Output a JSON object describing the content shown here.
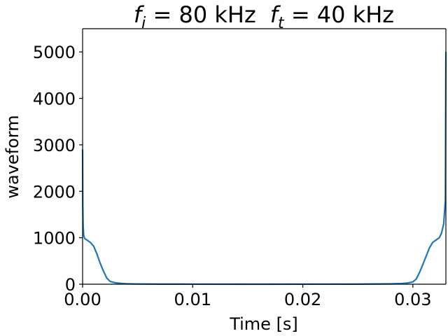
{
  "chart_data": {
    "type": "line",
    "title": {
      "f_i_symbol": "f",
      "f_i_sub": "i",
      "f_i_value": " = 80 kHz",
      "f_t_symbol": "f",
      "f_t_sub": "t",
      "f_t_value": " = 40 kHz"
    },
    "xlabel": "Time [s]",
    "ylabel": "waveform",
    "xlim": [
      0.0,
      0.033
    ],
    "ylim": [
      0,
      5500
    ],
    "xticks": [
      0.0,
      0.01,
      0.02,
      0.03
    ],
    "xtick_labels": [
      "0.00",
      "0.01",
      "0.02",
      "0.03"
    ],
    "yticks": [
      0,
      1000,
      2000,
      3000,
      4000,
      5000
    ],
    "ytick_labels": [
      "0",
      "1000",
      "2000",
      "3000",
      "4000",
      "5000"
    ],
    "grid": false,
    "series": [
      {
        "color": "#1f77b4",
        "x": [
          0.0,
          2e-05,
          5e-05,
          0.0001,
          0.0002,
          0.0004,
          0.0007,
          0.001,
          0.0013,
          0.0016,
          0.0019,
          0.0022,
          0.0025,
          0.003,
          0.0035,
          0.004,
          0.005,
          0.007,
          0.01,
          0.015,
          0.02,
          0.025,
          0.028,
          0.029,
          0.0295,
          0.03,
          0.0303,
          0.0306,
          0.0309,
          0.0312,
          0.0315,
          0.0318,
          0.0321,
          0.0324,
          0.0326,
          0.0328,
          0.03295,
          0.033
        ],
        "y": [
          2900,
          1700,
          1250,
          1050,
          980,
          950,
          900,
          820,
          650,
          450,
          280,
          130,
          60,
          30,
          18,
          10,
          5,
          2,
          1,
          0,
          1,
          2,
          8,
          15,
          25,
          50,
          110,
          250,
          420,
          600,
          780,
          900,
          950,
          1000,
          1100,
          1300,
          1800,
          5000
        ]
      }
    ]
  }
}
